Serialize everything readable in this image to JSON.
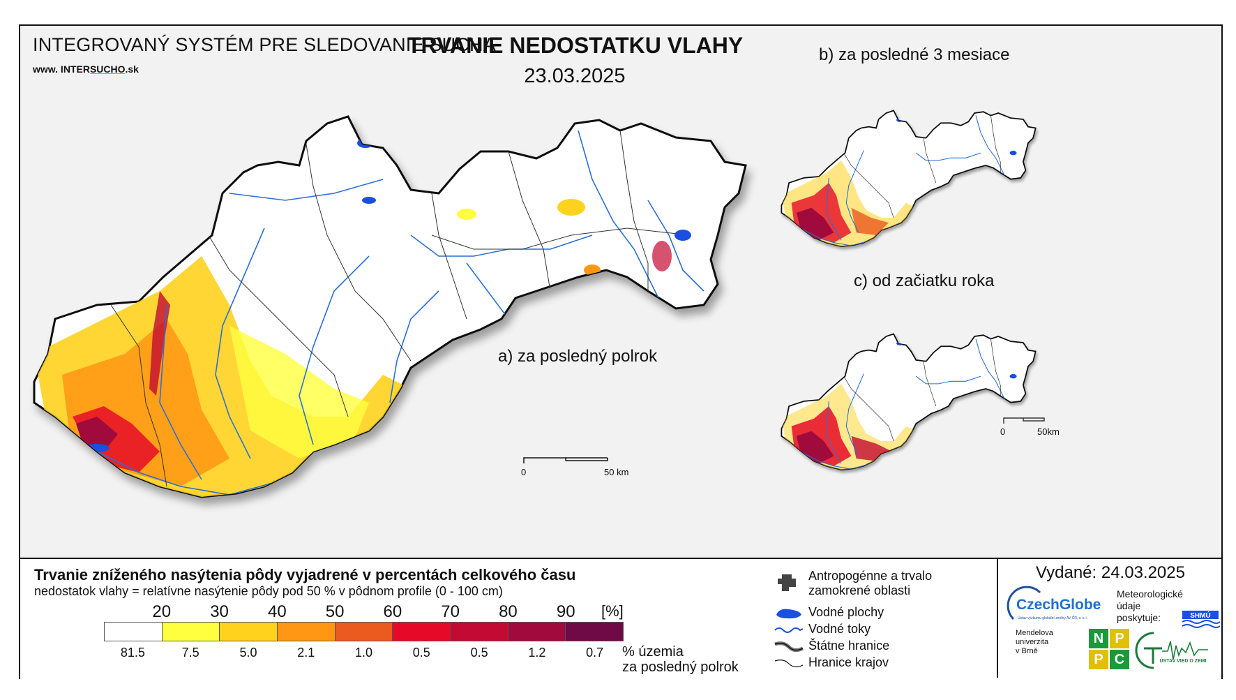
{
  "header": {
    "system_title": "INTEGROVANÝ SYSTÉM PRE SLEDOVANIE SUCHA",
    "url_prefix": "www. INTER",
    "url_highlight": "SUCHO",
    "url_suffix": ".sk",
    "title": "TRVANIE NEDOSTATKU VLAHY",
    "date": "23.03.2025"
  },
  "panels": {
    "a_label": "a) za posledný polrok",
    "b_label": "b) za posledné 3 mesiace",
    "c_label": "c) od začiatku roka"
  },
  "scale_bar": {
    "main_start": "0",
    "main_end": "50 km",
    "small_start": "0",
    "small_end": "50km"
  },
  "legend": {
    "title": "Trvanie zníženého nasýtenia pôdy vyjadrené v percentách celkového času",
    "subtitle": "nedostatok vlahy = relatívne nasýtenie pôdy pod 50 % v pôdnom profile (0 - 100 cm)",
    "unit": "[%]",
    "ticks": [
      "20",
      "30",
      "40",
      "50",
      "60",
      "70",
      "80",
      "90"
    ],
    "colors": [
      "#ffffff",
      "#ffff40",
      "#ffd21e",
      "#ff9614",
      "#eb5a1e",
      "#e60a28",
      "#c30a32",
      "#a00a3c",
      "#700a46"
    ],
    "percentages": [
      "81.5",
      "7.5",
      "5.0",
      "2.1",
      "1.0",
      "0.5",
      "0.5",
      "1.2",
      "0.7"
    ],
    "pct_note_line1": "% územia",
    "pct_note_line2": "za posledný polrok"
  },
  "symbols": {
    "anthropogenic_line1": "Antropogénne a trvalo",
    "anthropogenic_line2": "zamokrené oblasti",
    "water_bodies": "Vodné plochy",
    "rivers": "Vodné toky",
    "state_border": "Štátne hranice",
    "region_border": "Hranice krajov"
  },
  "issued": {
    "text": "Vydané: 24.03.2025",
    "czechglobe": "CzechGlobe",
    "czechglobe_sub": "Ústav výzkumu globální změny AV ČR, v. v. i.",
    "meteo_line1": "Meteorologické",
    "meteo_line2": "údaje",
    "meteo_line3": "poskytuje:",
    "shmu": "SHMÚ",
    "mendel_line1": "Mendelova",
    "mendel_line2": "univerzita",
    "mendel_line3": "v Brně",
    "nppc": [
      "N",
      "P",
      "P",
      "C"
    ],
    "uvz": "ÚSTAV VIED O ZEMI"
  }
}
